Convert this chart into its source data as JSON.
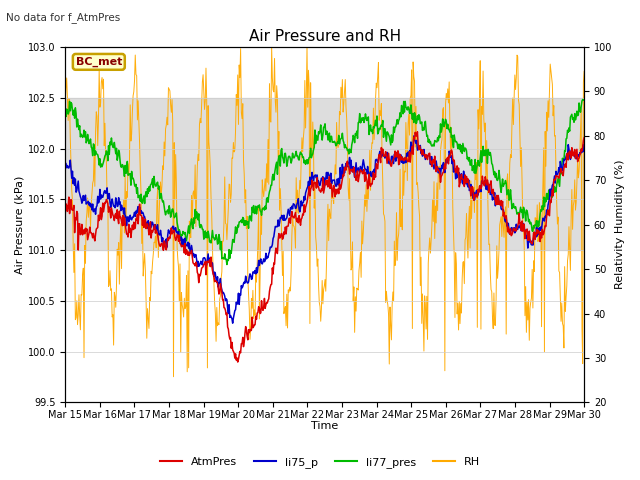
{
  "title": "Air Pressure and RH",
  "subtitle": "No data for f_AtmPres",
  "xlabel": "Time",
  "ylabel_left": "Air Pressure (kPa)",
  "ylabel_right": "Relativity Humidity (%)",
  "ylim_left": [
    99.5,
    103.0
  ],
  "ylim_right": [
    20,
    100
  ],
  "xtick_labels": [
    "Mar 15",
    "Mar 16",
    "Mar 17",
    "Mar 18",
    "Mar 19",
    "Mar 20",
    "Mar 21",
    "Mar 22",
    "Mar 23",
    "Mar 24",
    "Mar 25",
    "Mar 26",
    "Mar 27",
    "Mar 28",
    "Mar 29",
    "Mar 30"
  ],
  "box_label": "BC_met",
  "box_color": "#c8a000",
  "box_bg": "#ffffcc",
  "shaded_band": [
    101.0,
    102.5
  ],
  "colors": {
    "AtmPres": "#dd0000",
    "li75_p": "#0000cc",
    "li77_pres": "#00bb00",
    "RH": "#ffaa00"
  },
  "background_color": "#ffffff",
  "grid_color": "#cccccc",
  "title_fontsize": 11,
  "axis_label_fontsize": 8,
  "tick_fontsize": 7
}
